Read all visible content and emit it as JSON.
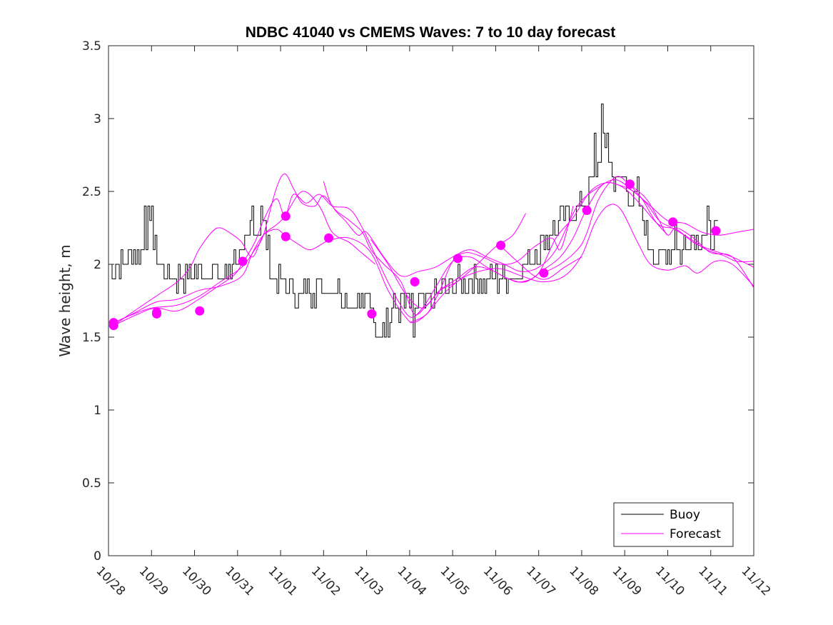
{
  "chart_data": {
    "type": "line",
    "title": "NDBC 41040 vs CMEMS Waves: 7 to 10 day forecast",
    "xlabel": "",
    "ylabel": "Wave height, m",
    "xlim": [
      0,
      15
    ],
    "ylim": [
      0,
      3.5
    ],
    "yticks": [
      0,
      0.5,
      1,
      1.5,
      2,
      2.5,
      3,
      3.5
    ],
    "ytick_labels": [
      "0",
      "0.5",
      "1",
      "1.5",
      "2",
      "2.5",
      "3",
      "3.5"
    ],
    "xtick_labels": [
      "10/28",
      "10/29",
      "10/30",
      "10/31",
      "11/01",
      "11/02",
      "11/03",
      "11/04",
      "11/05",
      "11/06",
      "11/07",
      "11/08",
      "11/09",
      "11/10",
      "11/11",
      "11/12"
    ],
    "legend": {
      "location": "bottom-right",
      "entries": [
        "Buoy",
        "Forecast"
      ]
    },
    "colors": {
      "buoy": "#000000",
      "forecast": "#ff00ff",
      "axes": "#262626"
    },
    "series": [
      {
        "name": "Buoy",
        "style": "step",
        "anchors": [
          [
            0.0,
            2.0
          ],
          [
            0.3,
            2.0
          ],
          [
            0.6,
            2.1
          ],
          [
            0.85,
            2.1
          ],
          [
            0.9,
            2.3
          ],
          [
            1.1,
            2.1
          ],
          [
            1.2,
            2.0
          ],
          [
            1.5,
            1.9
          ],
          [
            2.0,
            1.95
          ],
          [
            2.4,
            1.95
          ],
          [
            2.6,
            1.9
          ],
          [
            3.0,
            2.05
          ],
          [
            3.15,
            2.05
          ],
          [
            3.3,
            2.25
          ],
          [
            3.6,
            2.25
          ],
          [
            3.8,
            1.9
          ],
          [
            4.1,
            1.85
          ],
          [
            4.4,
            1.8
          ],
          [
            4.9,
            1.85
          ],
          [
            5.3,
            1.85
          ],
          [
            5.6,
            1.75
          ],
          [
            6.0,
            1.75
          ],
          [
            6.3,
            1.6
          ],
          [
            6.7,
            1.7
          ],
          [
            7.0,
            1.75
          ],
          [
            7.3,
            1.7
          ],
          [
            7.7,
            1.8
          ],
          [
            8.0,
            1.85
          ],
          [
            8.5,
            1.9
          ],
          [
            9.0,
            1.9
          ],
          [
            9.5,
            1.95
          ],
          [
            10.0,
            2.1
          ],
          [
            10.5,
            2.3
          ],
          [
            11.0,
            2.4
          ],
          [
            11.3,
            2.6
          ],
          [
            11.5,
            2.85
          ],
          [
            11.7,
            2.6
          ],
          [
            12.0,
            2.55
          ],
          [
            12.3,
            2.4
          ],
          [
            12.5,
            2.2
          ],
          [
            12.8,
            2.05
          ],
          [
            13.2,
            2.1
          ],
          [
            13.7,
            2.2
          ],
          [
            14.0,
            2.2
          ],
          [
            14.2,
            2.2
          ]
        ],
        "noise": 0.1,
        "spikes": [
          [
            0.85,
            2.4
          ],
          [
            1.0,
            2.4
          ],
          [
            3.35,
            2.4
          ],
          [
            3.55,
            2.4
          ],
          [
            6.2,
            1.5
          ],
          [
            6.5,
            1.5
          ],
          [
            7.1,
            1.5
          ],
          [
            11.45,
            3.1
          ],
          [
            11.3,
            2.9
          ],
          [
            11.6,
            2.9
          ],
          [
            12.3,
            2.55
          ],
          [
            13.15,
            2.3
          ],
          [
            12.7,
            2.0
          ],
          [
            13.3,
            1.95
          ],
          [
            13.9,
            2.4
          ]
        ]
      },
      {
        "name": "Forecast",
        "points": [
          [
            0.12,
            1.58
          ],
          [
            0.6,
            1.68
          ],
          [
            1.1,
            1.78
          ],
          [
            1.6,
            1.88
          ],
          [
            1.9,
            1.98
          ],
          [
            2.1,
            2.1
          ],
          [
            2.4,
            2.22
          ],
          [
            2.6,
            2.25
          ],
          [
            2.9,
            2.2
          ],
          [
            3.1,
            2.15
          ],
          [
            3.35,
            2.05
          ],
          [
            3.6,
            2.2
          ],
          [
            3.9,
            2.27
          ],
          [
            4.1,
            2.33
          ],
          [
            4.5,
            2.5
          ],
          [
            4.9,
            2.4
          ],
          [
            5.2,
            2.22
          ],
          [
            5.6,
            2.15
          ],
          [
            5.8,
            2.1
          ],
          [
            6.0,
            2.05
          ],
          [
            6.2,
            2.0
          ]
        ]
      },
      {
        "name": "Forecast",
        "points": [
          [
            0.12,
            1.6
          ],
          [
            0.5,
            1.65
          ],
          [
            1.1,
            1.74
          ],
          [
            1.6,
            1.76
          ],
          [
            2.1,
            1.82
          ],
          [
            2.6,
            1.85
          ],
          [
            3.1,
            1.92
          ],
          [
            3.35,
            2.08
          ],
          [
            3.6,
            2.2
          ],
          [
            3.9,
            2.24
          ],
          [
            4.1,
            2.2
          ],
          [
            4.4,
            2.14
          ],
          [
            4.7,
            2.1
          ],
          [
            5.1,
            2.16
          ],
          [
            5.6,
            2.18
          ],
          [
            6.1,
            2.08
          ],
          [
            6.5,
            1.82
          ],
          [
            6.9,
            1.64
          ],
          [
            7.1,
            1.6
          ],
          [
            7.4,
            1.66
          ],
          [
            7.8,
            1.8
          ],
          [
            8.2,
            1.9
          ],
          [
            8.6,
            1.95
          ],
          [
            9.1,
            1.97
          ],
          [
            9.6,
            1.92
          ],
          [
            10.1,
            1.88
          ],
          [
            10.6,
            1.92
          ],
          [
            11.0,
            2.06
          ],
          [
            11.3,
            2.28
          ],
          [
            11.6,
            2.4
          ],
          [
            11.9,
            2.38
          ],
          [
            12.3,
            2.15
          ],
          [
            12.6,
            2.0
          ],
          [
            13.0,
            1.96
          ],
          [
            13.4,
            1.99
          ],
          [
            13.7,
            1.94
          ],
          [
            14.1,
            2.02
          ],
          [
            14.5,
            2.0
          ],
          [
            15.0,
            1.85
          ]
        ]
      },
      {
        "name": "Forecast",
        "points": [
          [
            0.12,
            1.58
          ],
          [
            0.7,
            1.66
          ],
          [
            1.1,
            1.7
          ],
          [
            1.6,
            1.68
          ],
          [
            2.1,
            1.76
          ],
          [
            2.5,
            1.84
          ],
          [
            2.9,
            1.92
          ],
          [
            3.1,
            2.0
          ],
          [
            3.4,
            2.15
          ],
          [
            3.6,
            2.3
          ],
          [
            3.9,
            2.45
          ],
          [
            4.1,
            2.33
          ],
          [
            4.3,
            2.48
          ],
          [
            4.6,
            2.42
          ],
          [
            4.9,
            2.48
          ],
          [
            5.2,
            2.4
          ],
          [
            5.6,
            2.38
          ],
          [
            5.9,
            2.25
          ],
          [
            6.3,
            2.0
          ],
          [
            6.6,
            1.82
          ],
          [
            7.0,
            1.64
          ],
          [
            7.3,
            1.7
          ],
          [
            7.6,
            1.84
          ],
          [
            8.0,
            2.02
          ],
          [
            8.4,
            2.05
          ],
          [
            8.8,
            1.98
          ],
          [
            9.3,
            1.9
          ],
          [
            9.6,
            1.88
          ],
          [
            10.0,
            1.94
          ],
          [
            10.4,
            2.18
          ],
          [
            10.8,
            2.32
          ],
          [
            11.2,
            2.5
          ],
          [
            11.6,
            2.56
          ],
          [
            12.0,
            2.52
          ],
          [
            12.4,
            2.4
          ],
          [
            12.8,
            2.27
          ],
          [
            13.2,
            2.24
          ],
          [
            13.6,
            2.15
          ],
          [
            14.0,
            2.1
          ],
          [
            14.5,
            2.05
          ],
          [
            15.0,
            1.98
          ]
        ]
      },
      {
        "name": "Forecast",
        "points": [
          [
            0.12,
            1.6
          ],
          [
            0.6,
            1.66
          ],
          [
            1.0,
            1.7
          ],
          [
            1.6,
            1.72
          ],
          [
            2.1,
            1.78
          ],
          [
            2.6,
            1.88
          ],
          [
            3.1,
            1.98
          ],
          [
            3.4,
            2.1
          ],
          [
            3.6,
            2.2
          ],
          [
            3.9,
            2.52
          ],
          [
            4.1,
            2.62
          ],
          [
            4.3,
            2.52
          ],
          [
            4.5,
            2.42
          ],
          [
            4.8,
            2.4
          ],
          [
            5.0,
            2.47
          ],
          [
            5.3,
            2.36
          ],
          [
            5.5,
            2.3
          ],
          [
            5.8,
            2.2
          ],
          [
            6.0,
            2.22
          ],
          [
            6.4,
            2.05
          ],
          [
            6.8,
            1.92
          ],
          [
            7.2,
            1.95
          ],
          [
            7.6,
            1.98
          ],
          [
            8.0,
            2.05
          ],
          [
            8.4,
            2.1
          ],
          [
            8.8,
            2.05
          ],
          [
            9.2,
            2.0
          ],
          [
            9.6,
            1.95
          ],
          [
            10.0,
            1.98
          ],
          [
            10.4,
            2.1
          ],
          [
            10.9,
            2.4
          ],
          [
            11.4,
            2.53
          ],
          [
            11.8,
            2.58
          ],
          [
            12.2,
            2.5
          ],
          [
            12.6,
            2.4
          ],
          [
            13.0,
            2.3
          ],
          [
            13.4,
            2.28
          ],
          [
            13.8,
            2.22
          ],
          [
            14.2,
            2.2
          ],
          [
            14.6,
            2.22
          ],
          [
            15.0,
            2.24
          ]
        ]
      },
      {
        "name": "Forecast",
        "points": [
          [
            5.0,
            2.57
          ],
          [
            5.2,
            2.4
          ],
          [
            5.6,
            2.3
          ],
          [
            5.9,
            2.22
          ],
          [
            6.1,
            2.1
          ],
          [
            6.4,
            2.0
          ],
          [
            6.8,
            1.88
          ],
          [
            7.1,
            1.66
          ],
          [
            7.4,
            1.72
          ],
          [
            7.7,
            1.82
          ],
          [
            8.1,
            1.9
          ],
          [
            8.5,
            1.98
          ],
          [
            8.9,
            1.96
          ],
          [
            9.3,
            1.9
          ],
          [
            9.7,
            1.88
          ],
          [
            10.1,
            1.96
          ],
          [
            10.5,
            2.05
          ],
          [
            10.8,
            2.18
          ],
          [
            11.1,
            2.37
          ],
          [
            11.5,
            2.55
          ],
          [
            11.9,
            2.54
          ],
          [
            12.2,
            2.5
          ],
          [
            12.5,
            2.42
          ],
          [
            12.8,
            2.3
          ],
          [
            13.1,
            2.25
          ],
          [
            13.5,
            2.18
          ],
          [
            13.9,
            2.1
          ],
          [
            14.3,
            2.06
          ],
          [
            14.6,
            2.02
          ],
          [
            15.0,
            2.02
          ]
        ]
      },
      {
        "name": "Forecast",
        "points": [
          [
            6.1,
            2.17
          ],
          [
            6.5,
            2.0
          ],
          [
            6.9,
            1.8
          ],
          [
            7.3,
            1.7
          ],
          [
            7.7,
            1.82
          ],
          [
            8.1,
            1.88
          ],
          [
            8.5,
            1.98
          ],
          [
            9.0,
            2.12
          ],
          [
            9.4,
            2.2
          ],
          [
            9.7,
            2.35
          ]
        ]
      },
      {
        "name": "Forecast",
        "points": [
          [
            7.0,
            1.6
          ],
          [
            7.4,
            1.66
          ],
          [
            7.7,
            1.82
          ],
          [
            8.0,
            2.02
          ],
          [
            8.3,
            2.08
          ],
          [
            8.7,
            2.05
          ],
          [
            9.1,
            2.0
          ],
          [
            9.5,
            2.02
          ],
          [
            9.9,
            2.12
          ],
          [
            10.3,
            2.18
          ],
          [
            10.5,
            2.1
          ],
          [
            10.7,
            2.28
          ],
          [
            10.8,
            2.4
          ]
        ]
      },
      {
        "name": "Forecast",
        "points": [
          [
            10.1,
            1.94
          ],
          [
            10.5,
            2.0
          ],
          [
            10.9,
            2.1
          ],
          [
            11.1,
            2.2
          ],
          [
            11.4,
            2.45
          ],
          [
            11.8,
            2.6
          ],
          [
            12.1,
            2.55
          ],
          [
            12.5,
            2.45
          ],
          [
            12.8,
            2.3
          ],
          [
            13.0,
            2.2
          ],
          [
            13.2,
            2.25
          ],
          [
            13.6,
            2.18
          ],
          [
            14.0,
            2.08
          ],
          [
            14.5,
            2.05
          ],
          [
            15.0,
            1.84
          ]
        ]
      },
      {
        "name": "Forecast",
        "points": [
          [
            9.1,
            2.13
          ],
          [
            9.5,
            2.02
          ],
          [
            9.9,
            1.92
          ],
          [
            10.2,
            1.9
          ],
          [
            10.6,
            1.98
          ],
          [
            11.0,
            2.05
          ]
        ]
      },
      {
        "name": "Forecast",
        "points": [
          [
            12.1,
            2.55
          ],
          [
            12.4,
            2.45
          ],
          [
            12.7,
            2.3
          ],
          [
            13.0,
            2.2
          ]
        ]
      }
    ],
    "markers": [
      [
        0.12,
        1.6
      ],
      [
        0.12,
        1.58
      ],
      [
        1.12,
        1.66
      ],
      [
        1.12,
        1.67
      ],
      [
        2.12,
        1.68
      ],
      [
        3.12,
        2.02
      ],
      [
        4.12,
        2.33
      ],
      [
        4.12,
        2.19
      ],
      [
        5.12,
        2.18
      ],
      [
        6.12,
        1.66
      ],
      [
        7.12,
        1.88
      ],
      [
        8.12,
        2.04
      ],
      [
        9.12,
        2.13
      ],
      [
        10.12,
        1.94
      ],
      [
        11.12,
        2.37
      ],
      [
        12.12,
        2.55
      ],
      [
        13.12,
        2.29
      ],
      [
        14.12,
        2.23
      ]
    ]
  }
}
